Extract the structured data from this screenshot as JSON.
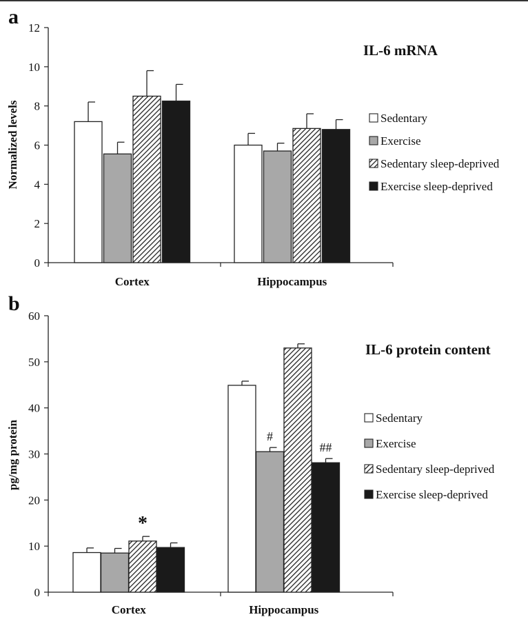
{
  "colors": {
    "sedentary": "#ffffff",
    "exercise": "#a8a8a8",
    "sedentary_sleep_deprived": "hatched",
    "exercise_sleep_deprived": "#1a1a1a",
    "outline": "#222222"
  },
  "chart_data": [
    {
      "panel": "a",
      "type": "bar",
      "title": "IL-6 mRNA",
      "ylabel": "Normalized levels",
      "xlabel": "",
      "ylim": [
        0,
        12
      ],
      "yticks": [
        0,
        2,
        4,
        6,
        8,
        10,
        12
      ],
      "categories": [
        "Cortex",
        "Hippocampus"
      ],
      "legend_position": "right",
      "series": [
        {
          "name": "Sedentary",
          "values": [
            7.2,
            6.0
          ],
          "errors": [
            1.0,
            0.6
          ]
        },
        {
          "name": "Exercise",
          "values": [
            5.55,
            5.7
          ],
          "errors": [
            0.6,
            0.4
          ]
        },
        {
          "name": "Sedentary sleep-deprived",
          "values": [
            8.5,
            6.85
          ],
          "errors": [
            1.3,
            0.75
          ]
        },
        {
          "name": "Exercise sleep-deprived",
          "values": [
            8.25,
            6.8
          ],
          "errors": [
            0.85,
            0.5
          ]
        }
      ],
      "annotations": []
    },
    {
      "panel": "b",
      "type": "bar",
      "title": "IL-6 protein content",
      "ylabel": "pg/mg protein",
      "xlabel": "",
      "ylim": [
        0,
        60
      ],
      "yticks": [
        0,
        10,
        20,
        30,
        40,
        50,
        60
      ],
      "categories": [
        "Cortex",
        "Hippocampus"
      ],
      "legend_position": "right",
      "series": [
        {
          "name": "Sedentary",
          "values": [
            8.6,
            44.9
          ],
          "errors": [
            1.0,
            0.9
          ]
        },
        {
          "name": "Exercise",
          "values": [
            8.5,
            30.5
          ],
          "errors": [
            1.0,
            0.9
          ]
        },
        {
          "name": "Sedentary sleep-deprived",
          "values": [
            11.1,
            53.0
          ],
          "errors": [
            1.0,
            0.9
          ]
        },
        {
          "name": "Exercise sleep-deprived",
          "values": [
            9.7,
            28.1
          ],
          "errors": [
            1.0,
            0.9
          ]
        }
      ],
      "annotations": [
        {
          "text": "*",
          "category": 0,
          "series": 2
        },
        {
          "text": "#",
          "category": 1,
          "series": 1
        },
        {
          "text": "##",
          "category": 1,
          "series": 3
        }
      ]
    }
  ]
}
